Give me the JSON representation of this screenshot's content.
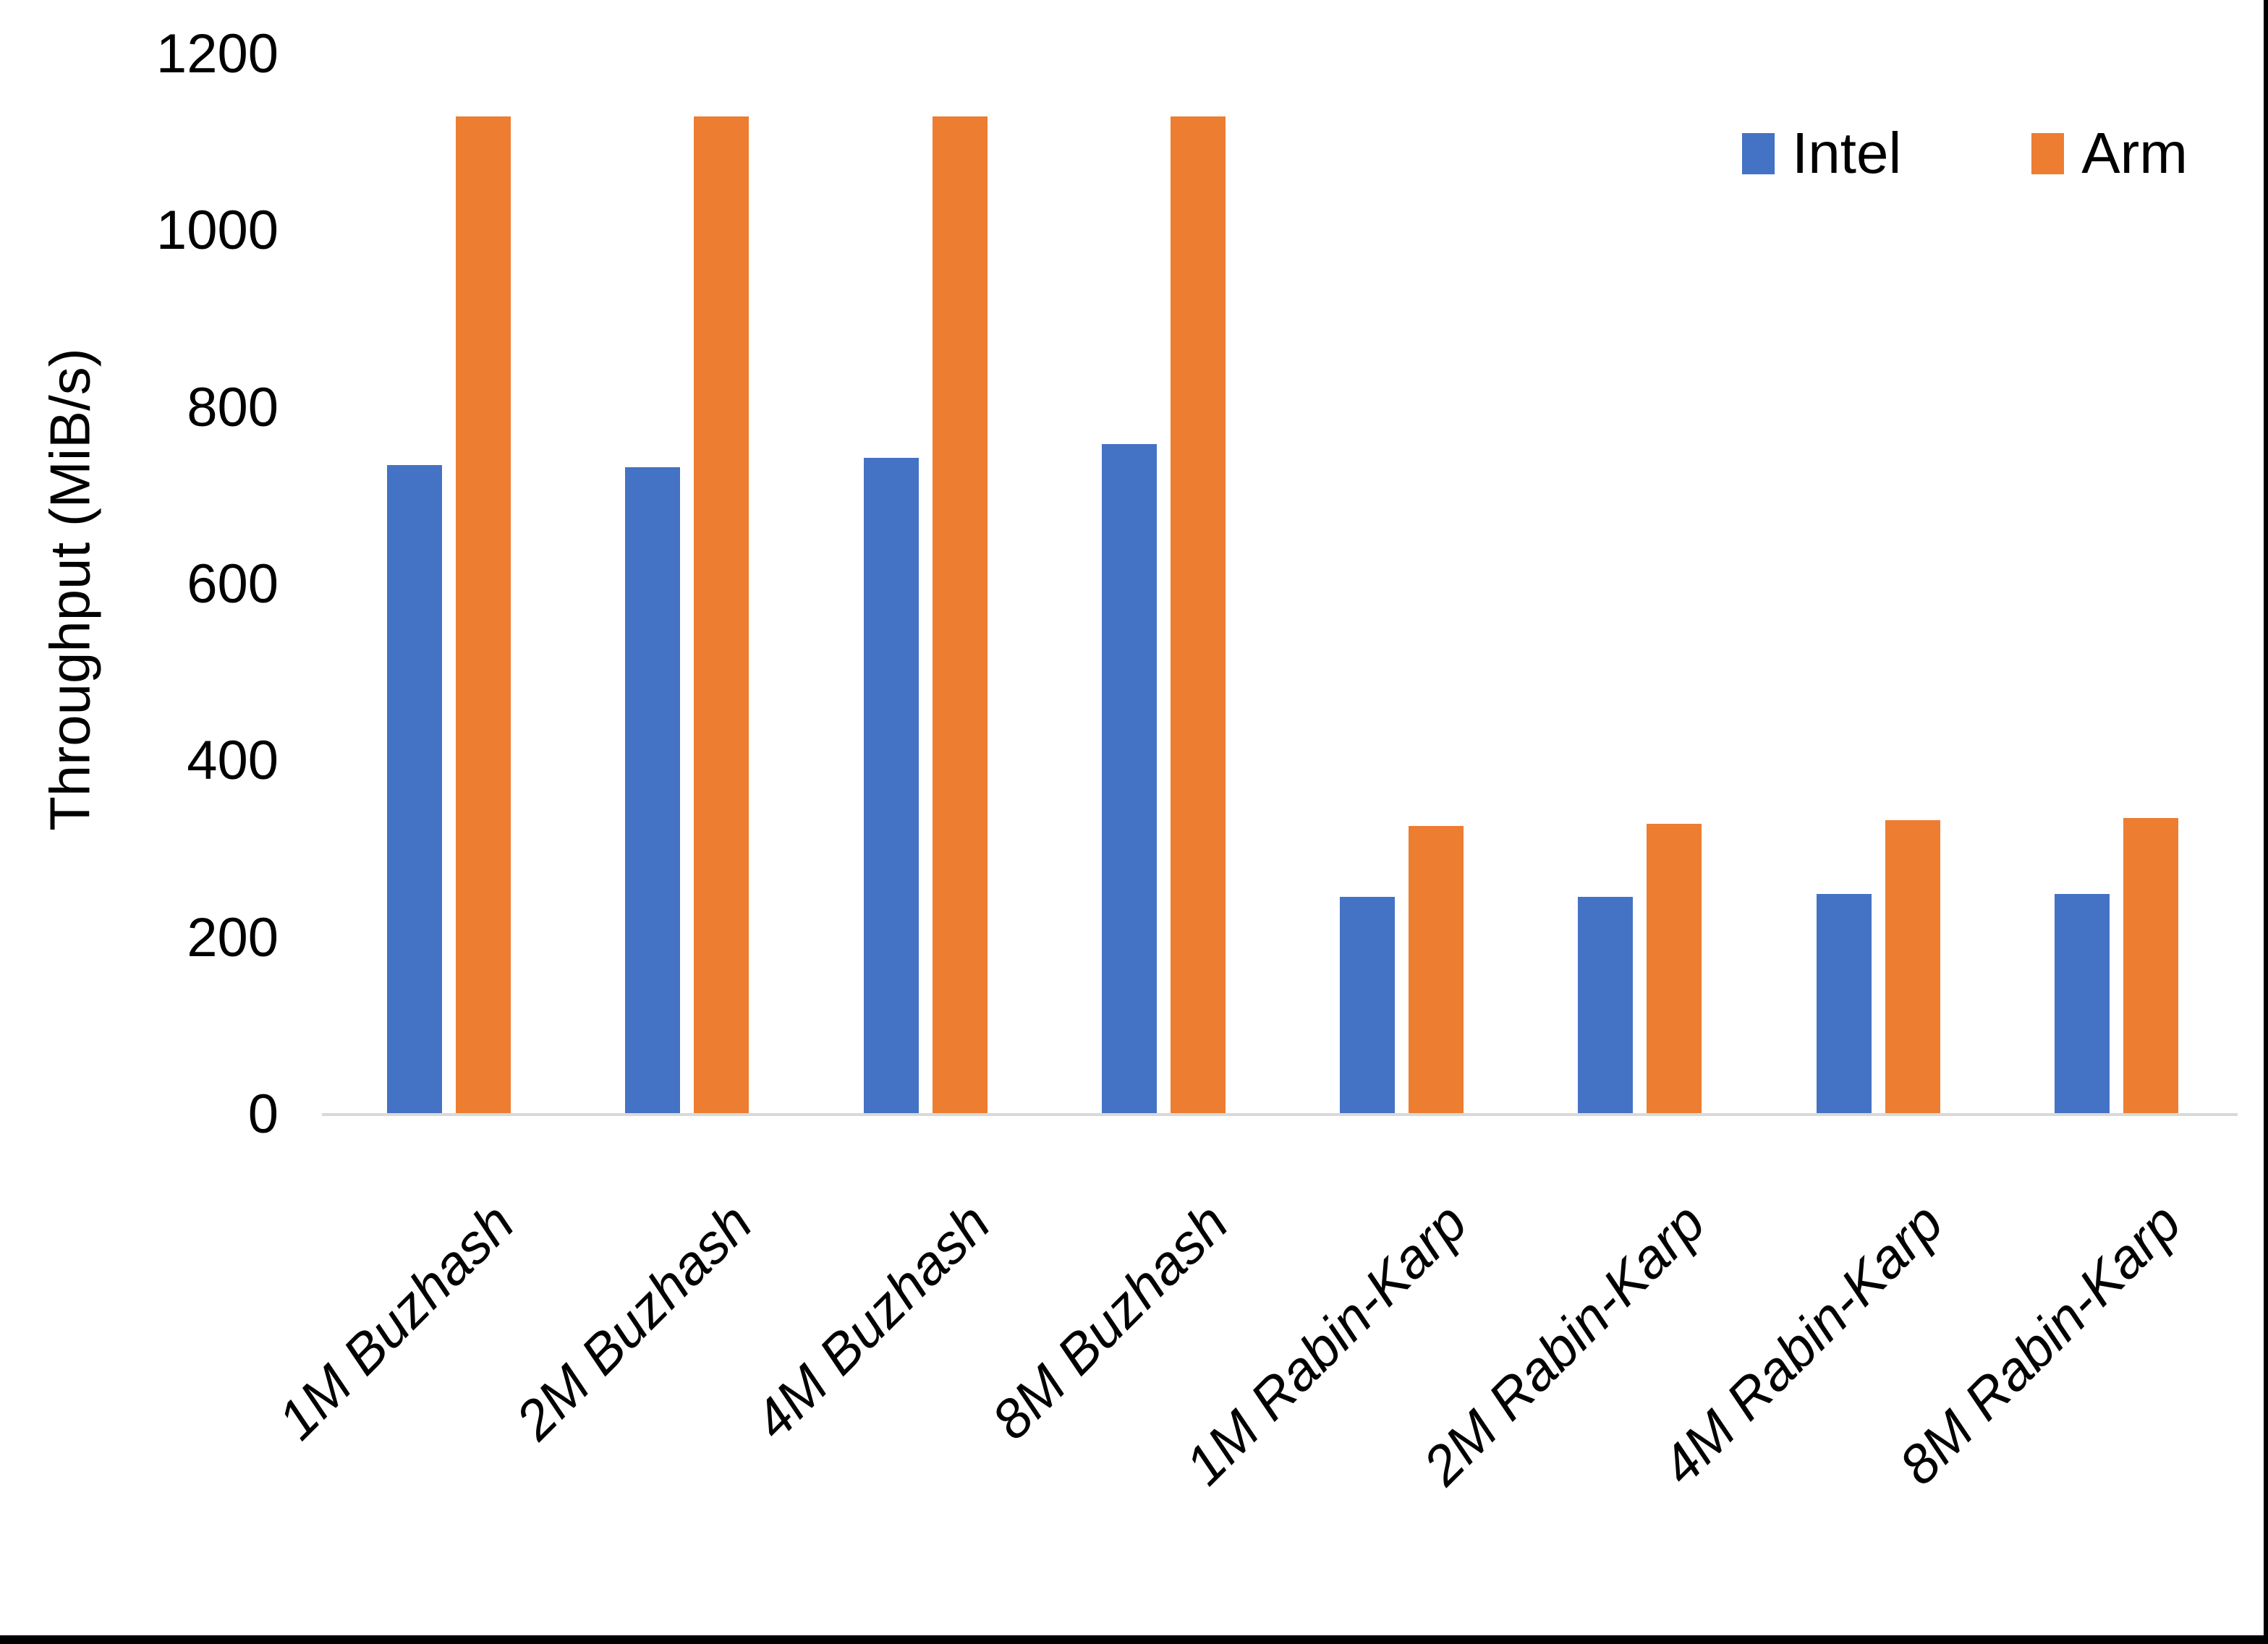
{
  "chart_data": {
    "type": "bar",
    "title": "",
    "xlabel": "",
    "ylabel": "Throughput (MiB/s)",
    "ylim": [
      0,
      1200
    ],
    "yticks": [
      0,
      200,
      400,
      600,
      800,
      1000,
      1200
    ],
    "grid": false,
    "legend_position": "top-right",
    "categories": [
      "1M Buzhash",
      "2M Buzhash",
      "4M Buzhash",
      "8M Buzhash",
      "1M Rabin-Karp",
      "2M Rabin-Karp",
      "4M Rabin-Karp",
      "8M Rabin-Karp"
    ],
    "series": [
      {
        "name": "Intel",
        "color": "#4472C4",
        "values": [
          735,
          733,
          743,
          759,
          246,
          246,
          250,
          250
        ]
      },
      {
        "name": "Arm",
        "color": "#ED7D31",
        "values": [
          1130,
          1130,
          1130,
          1130,
          327,
          329,
          333,
          336
        ]
      }
    ]
  },
  "colors": {
    "background": "#FFFFFF",
    "axis_line": "#D9D9D9",
    "text": "#000000",
    "frame": "#000000",
    "intel": "#4472C4",
    "arm": "#ED7D31"
  }
}
